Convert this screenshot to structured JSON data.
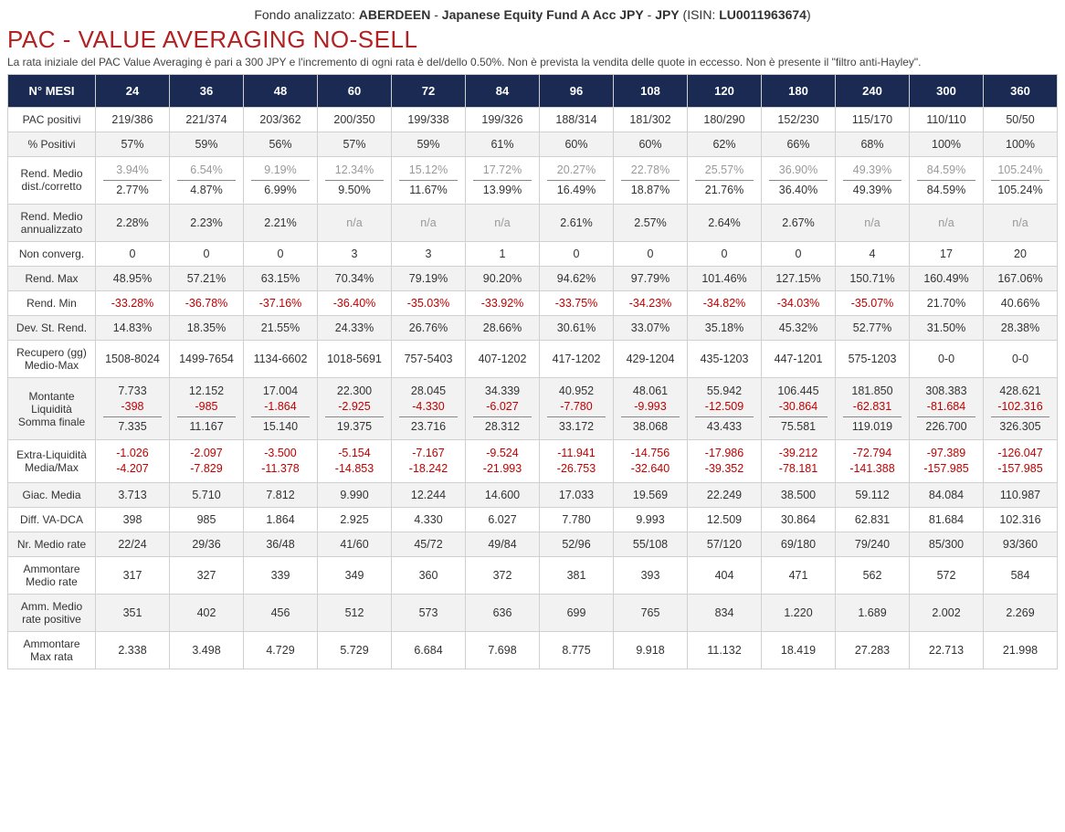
{
  "fund": {
    "prefix": "Fondo analizzato:",
    "company": "ABERDEEN",
    "sep1": " - ",
    "name": "Japanese Equity Fund A Acc JPY",
    "sep2": " - ",
    "ccy": "JPY",
    "isin_label": " (ISIN: ",
    "isin": "LU0011963674",
    "isin_close": ")"
  },
  "title": "PAC - VALUE AVERAGING NO-SELL",
  "subtitle": "La rata iniziale del PAC Value Averaging è pari a 300 JPY e l'incremento di ogni rata è del/dello 0.50%. Non è prevista la vendita delle quote in eccesso. Non è presente il \"filtro anti-Hayley\".",
  "header": [
    "N° MESI",
    "24",
    "36",
    "48",
    "60",
    "72",
    "84",
    "96",
    "108",
    "120",
    "180",
    "240",
    "300",
    "360"
  ],
  "rows": {
    "pac_pos": {
      "label": "PAC positivi",
      "v": [
        "219/386",
        "221/374",
        "203/362",
        "200/350",
        "199/338",
        "199/326",
        "188/314",
        "181/302",
        "180/290",
        "152/230",
        "115/170",
        "110/110",
        "50/50"
      ]
    },
    "pct_pos": {
      "label": "% Positivi",
      "v": [
        "57%",
        "59%",
        "56%",
        "57%",
        "59%",
        "61%",
        "60%",
        "60%",
        "62%",
        "66%",
        "68%",
        "100%",
        "100%"
      ]
    },
    "rend_dist": {
      "label": "Rend. Medio dist./corretto",
      "top": [
        "3.94%",
        "6.54%",
        "9.19%",
        "12.34%",
        "15.12%",
        "17.72%",
        "20.27%",
        "22.78%",
        "25.57%",
        "36.90%",
        "49.39%",
        "84.59%",
        "105.24%"
      ],
      "bot": [
        "2.77%",
        "4.87%",
        "6.99%",
        "9.50%",
        "11.67%",
        "13.99%",
        "16.49%",
        "18.87%",
        "21.76%",
        "36.40%",
        "49.39%",
        "84.59%",
        "105.24%"
      ]
    },
    "rend_ann": {
      "label": "Rend. Medio annualizzato",
      "v": [
        "2.28%",
        "2.23%",
        "2.21%",
        "n/a",
        "n/a",
        "n/a",
        "2.61%",
        "2.57%",
        "2.64%",
        "2.67%",
        "n/a",
        "n/a",
        "n/a"
      ],
      "muted": [
        0,
        0,
        0,
        1,
        1,
        1,
        0,
        0,
        0,
        0,
        1,
        1,
        1
      ]
    },
    "non_conv": {
      "label": "Non converg.",
      "v": [
        "0",
        "0",
        "0",
        "3",
        "3",
        "1",
        "0",
        "0",
        "0",
        "0",
        "4",
        "17",
        "20"
      ]
    },
    "rend_max": {
      "label": "Rend. Max",
      "v": [
        "48.95%",
        "57.21%",
        "63.15%",
        "70.34%",
        "79.19%",
        "90.20%",
        "94.62%",
        "97.79%",
        "101.46%",
        "127.15%",
        "150.71%",
        "160.49%",
        "167.06%"
      ]
    },
    "rend_min": {
      "label": "Rend. Min",
      "v": [
        "-33.28%",
        "-36.78%",
        "-37.16%",
        "-36.40%",
        "-35.03%",
        "-33.92%",
        "-33.75%",
        "-34.23%",
        "-34.82%",
        "-34.03%",
        "-35.07%",
        "21.70%",
        "40.66%"
      ],
      "neg": [
        1,
        1,
        1,
        1,
        1,
        1,
        1,
        1,
        1,
        1,
        1,
        0,
        0
      ]
    },
    "dev_st": {
      "label": "Dev. St. Rend.",
      "v": [
        "14.83%",
        "18.35%",
        "21.55%",
        "24.33%",
        "26.76%",
        "28.66%",
        "30.61%",
        "33.07%",
        "35.18%",
        "45.32%",
        "52.77%",
        "31.50%",
        "28.38%"
      ]
    },
    "recupero": {
      "label": "Recupero (gg) Medio-Max",
      "v": [
        "1508-8024",
        "1499-7654",
        "1134-6602",
        "1018-5691",
        "757-5403",
        "407-1202",
        "417-1202",
        "429-1204",
        "435-1203",
        "447-1201",
        "575-1203",
        "0-0",
        "0-0"
      ]
    },
    "montante": {
      "label": "Montante Liquidità Somma finale",
      "a": [
        "7.733",
        "12.152",
        "17.004",
        "22.300",
        "28.045",
        "34.339",
        "40.952",
        "48.061",
        "55.942",
        "106.445",
        "181.850",
        "308.383",
        "428.621"
      ],
      "b": [
        "-398",
        "-985",
        "-1.864",
        "-2.925",
        "-4.330",
        "-6.027",
        "-7.780",
        "-9.993",
        "-12.509",
        "-30.864",
        "-62.831",
        "-81.684",
        "-102.316"
      ],
      "c": [
        "7.335",
        "11.167",
        "15.140",
        "19.375",
        "23.716",
        "28.312",
        "33.172",
        "38.068",
        "43.433",
        "75.581",
        "119.019",
        "226.700",
        "326.305"
      ]
    },
    "extra_liq": {
      "label": "Extra-Liquidità Media/Max",
      "a": [
        "-1.026",
        "-2.097",
        "-3.500",
        "-5.154",
        "-7.167",
        "-9.524",
        "-11.941",
        "-14.756",
        "-17.986",
        "-39.212",
        "-72.794",
        "-97.389",
        "-126.047"
      ],
      "b": [
        "-4.207",
        "-7.829",
        "-11.378",
        "-14.853",
        "-18.242",
        "-21.993",
        "-26.753",
        "-32.640",
        "-39.352",
        "-78.181",
        "-141.388",
        "-157.985",
        "-157.985"
      ]
    },
    "giac": {
      "label": "Giac. Media",
      "v": [
        "3.713",
        "5.710",
        "7.812",
        "9.990",
        "12.244",
        "14.600",
        "17.033",
        "19.569",
        "22.249",
        "38.500",
        "59.112",
        "84.084",
        "110.987"
      ]
    },
    "diff": {
      "label": "Diff. VA-DCA",
      "v": [
        "398",
        "985",
        "1.864",
        "2.925",
        "4.330",
        "6.027",
        "7.780",
        "9.993",
        "12.509",
        "30.864",
        "62.831",
        "81.684",
        "102.316"
      ]
    },
    "nr_rate": {
      "label": "Nr. Medio rate",
      "v": [
        "22/24",
        "29/36",
        "36/48",
        "41/60",
        "45/72",
        "49/84",
        "52/96",
        "55/108",
        "57/120",
        "69/180",
        "79/240",
        "85/300",
        "93/360"
      ]
    },
    "amm_medio": {
      "label": "Ammontare Medio rate",
      "v": [
        "317",
        "327",
        "339",
        "349",
        "360",
        "372",
        "381",
        "393",
        "404",
        "471",
        "562",
        "572",
        "584"
      ]
    },
    "amm_pos": {
      "label": "Amm. Medio rate positive",
      "v": [
        "351",
        "402",
        "456",
        "512",
        "573",
        "636",
        "699",
        "765",
        "834",
        "1.220",
        "1.689",
        "2.002",
        "2.269"
      ]
    },
    "amm_max": {
      "label": "Ammontare Max rata",
      "v": [
        "2.338",
        "3.498",
        "4.729",
        "5.729",
        "6.684",
        "7.698",
        "8.775",
        "9.918",
        "11.132",
        "18.419",
        "27.283",
        "22.713",
        "21.998"
      ]
    }
  }
}
